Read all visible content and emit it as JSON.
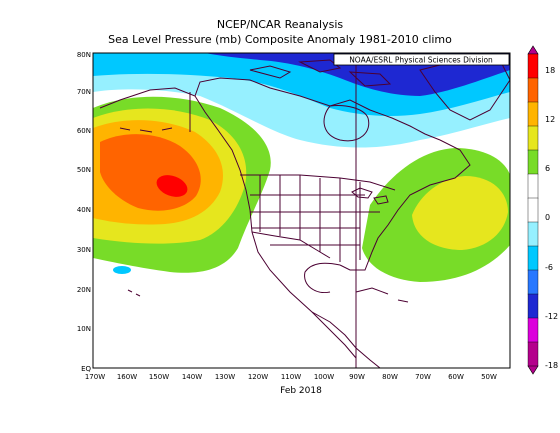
{
  "title": "NCEP/NCAR Reanalysis",
  "subtitle": "Sea Level Pressure (mb) Composite Anomaly 1981-2010 climo",
  "credit": "NOAA/ESRL Physical Sciences Division",
  "xlabel": "Feb 2018",
  "lat_labels": [
    "80N",
    "70N",
    "60N",
    "50N",
    "40N",
    "30N",
    "20N",
    "10N",
    "EQ"
  ],
  "lon_labels": [
    "170W",
    "160W",
    "150W",
    "140W",
    "130W",
    "120W",
    "110W",
    "100W",
    "90W",
    "80W",
    "70W",
    "60W",
    "50W"
  ],
  "colorbar": {
    "ticks": [
      "18",
      "12",
      "6",
      "0",
      "-6",
      "-12",
      "-18"
    ],
    "colors": [
      "#b4008c",
      "#dc00dc",
      "#1e28d2",
      "#2878ff",
      "#00c8ff",
      "#96f0ff",
      "#ffffff",
      "#ffffff",
      "#78dc28",
      "#e6e61e",
      "#ffb400",
      "#ff6400",
      "#ff0000"
    ]
  },
  "layers": {
    "land_outline_color": "#4b0032",
    "background": "#ffffff"
  }
}
